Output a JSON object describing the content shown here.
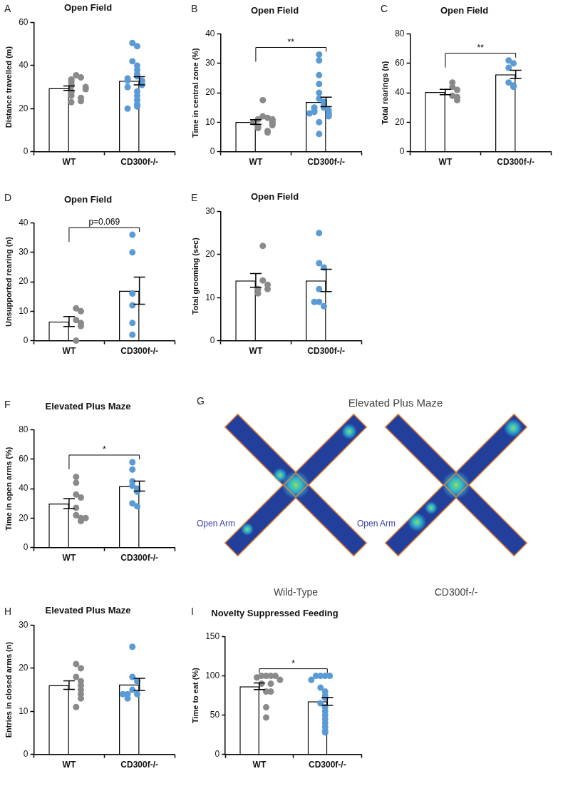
{
  "chart_data": [
    {
      "panel": "A",
      "type": "bar",
      "title": "Open Field",
      "y_label": "Distance travelled (m)",
      "categories": [
        "WT",
        "CD300f-/-"
      ],
      "values": [
        29.5,
        32.9
      ],
      "error": [
        1.0,
        1.9
      ],
      "points": [
        [
          35.5,
          34.5,
          33.5,
          33,
          32,
          31,
          30.5,
          30,
          29,
          28,
          27.5,
          26,
          25,
          23.5,
          23
        ],
        [
          50.5,
          49,
          42,
          40,
          38,
          36,
          35,
          34,
          33,
          33,
          32,
          31,
          30,
          28,
          26,
          24,
          22,
          21,
          20
        ]
      ],
      "colors": [
        "#8a8a8a",
        "#5b9bd5"
      ],
      "ylim": [
        0,
        60
      ],
      "yticks": [
        0,
        20,
        40,
        60
      ],
      "grid": false
    },
    {
      "panel": "B",
      "type": "bar",
      "title": "Open Field",
      "y_label": "Time in central zone (%)",
      "categories": [
        "WT",
        "CD300f-/-"
      ],
      "values": [
        10.1,
        16.9
      ],
      "error": [
        0.8,
        1.6
      ],
      "points": [
        [
          17.5,
          12,
          11.5,
          11,
          11,
          10.5,
          10,
          10,
          9.5,
          9,
          8.5,
          8,
          7,
          6.5
        ],
        [
          33,
          31,
          26,
          23,
          20,
          18,
          17,
          16,
          15,
          15,
          14,
          14,
          13.5,
          13,
          13,
          12.5,
          12,
          10,
          6
        ]
      ],
      "colors": [
        "#8a8a8a",
        "#5b9bd5"
      ],
      "ylim": [
        0,
        40
      ],
      "yticks": [
        0,
        10,
        20,
        30,
        40
      ],
      "grid": false,
      "annotation": "**"
    },
    {
      "panel": "C",
      "type": "bar",
      "title": "Open Field",
      "y_label": "Total rearings (n)",
      "categories": [
        "WT",
        "CD300f-/-"
      ],
      "values": [
        40.5,
        52.5
      ],
      "error": [
        1.8,
        2.8
      ],
      "points": [
        [
          47,
          44,
          42,
          38,
          37,
          35
        ],
        [
          62,
          60,
          57,
          47,
          45,
          44
        ]
      ],
      "colors": [
        "#8a8a8a",
        "#5b9bd5"
      ],
      "ylim": [
        0,
        80
      ],
      "yticks": [
        0,
        20,
        40,
        60,
        80
      ],
      "grid": false,
      "annotation": "**"
    },
    {
      "panel": "D",
      "type": "bar",
      "title": "Open Field",
      "y_label": "Unsupported rearing (n)",
      "categories": [
        "WT",
        "CD300f-/-"
      ],
      "values": [
        6.5,
        17
      ],
      "error": [
        1.7,
        4.6
      ],
      "points": [
        [
          11,
          10,
          7,
          6,
          5,
          0
        ],
        [
          36,
          30,
          16,
          12,
          6,
          2
        ]
      ],
      "colors": [
        "#8a8a8a",
        "#5b9bd5"
      ],
      "ylim": [
        0,
        40
      ],
      "yticks": [
        0,
        10,
        20,
        30,
        40
      ],
      "grid": false,
      "annotation": "p=0.069"
    },
    {
      "panel": "E",
      "type": "bar",
      "title": "Open Field",
      "y_label": "Total grooming (sec)",
      "categories": [
        "WT",
        "CD300f-/-"
      ],
      "values": [
        14,
        14
      ],
      "error": [
        1.6,
        2.6
      ],
      "points": [
        [
          22,
          14,
          13,
          12,
          12,
          11
        ],
        [
          25,
          18,
          17,
          12,
          9,
          8,
          9
        ]
      ],
      "colors": [
        "#8a8a8a",
        "#5b9bd5"
      ],
      "ylim": [
        0,
        30
      ],
      "yticks": [
        0,
        10,
        20,
        30
      ],
      "grid": false
    },
    {
      "panel": "F",
      "type": "bar",
      "title": "Elevated Plus Maze",
      "y_label": "Time in open arms (%)",
      "categories": [
        "WT",
        "CD300f-/-"
      ],
      "values": [
        29.9,
        41.75
      ],
      "error": [
        3.4,
        3.4
      ],
      "points": [
        [
          48,
          44,
          36,
          34,
          27,
          22,
          20,
          18,
          20
        ],
        [
          58,
          53,
          45,
          42,
          40,
          38,
          30,
          28
        ]
      ],
      "colors": [
        "#8a8a8a",
        "#5b9bd5"
      ],
      "ylim": [
        0,
        80
      ],
      "yticks": [
        0,
        20,
        40,
        60,
        80
      ],
      "grid": false,
      "annotation": "*"
    },
    {
      "panel": "H",
      "type": "bar",
      "title": "Elevated Plus Maze",
      "y_label": "Entries in closed arms (n)",
      "categories": [
        "WT",
        "CD300f-/-"
      ],
      "values": [
        16.1,
        16.25
      ],
      "error": [
        1.0,
        1.4
      ],
      "points": [
        [
          21,
          20,
          18,
          17,
          16,
          15,
          14,
          13,
          11
        ],
        [
          25,
          18,
          17,
          15,
          14,
          14,
          13,
          14
        ]
      ],
      "colors": [
        "#8a8a8a",
        "#5b9bd5"
      ],
      "ylim": [
        0,
        30
      ],
      "yticks": [
        0,
        10,
        20,
        30
      ],
      "grid": false
    },
    {
      "panel": "I",
      "type": "bar",
      "title": "Novelty Suppressed Feeding",
      "y_label": "Time to eat (%)",
      "categories": [
        "WT",
        "CD300f-/-"
      ],
      "values": [
        86.7,
        67.5
      ],
      "error": [
        4.2,
        5.0
      ],
      "points": [
        [
          100,
          100,
          100,
          100,
          98,
          95,
          90,
          90,
          80,
          80,
          60,
          47
        ],
        [
          100,
          100,
          100,
          100,
          95,
          85,
          80,
          75,
          72,
          65,
          60,
          55,
          50,
          45,
          40,
          35,
          30,
          28
        ]
      ],
      "colors": [
        "#8a8a8a",
        "#5b9bd5"
      ],
      "ylim": [
        0,
        150
      ],
      "yticks": [
        0,
        50,
        100,
        150
      ],
      "grid": false,
      "annotation": "*"
    }
  ],
  "diagram": {
    "panel": "G",
    "title": "Elevated Plus Maze",
    "arm_labels": [
      "Open Arm",
      "Open Arm"
    ],
    "captions": [
      "Wild-Type",
      "CD300f-/-"
    ]
  }
}
